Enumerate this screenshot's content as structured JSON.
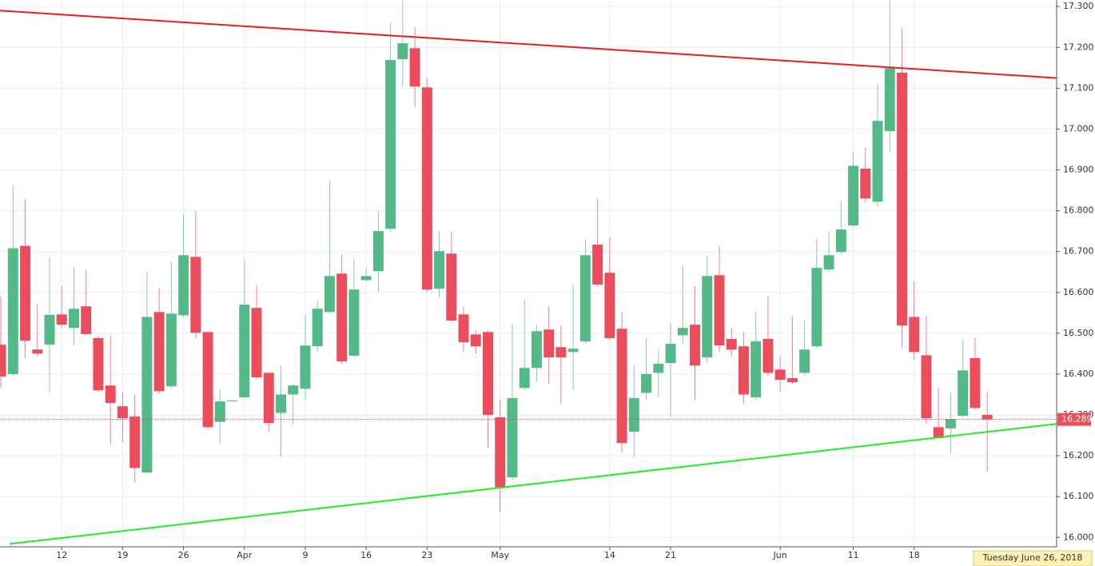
{
  "chart_data": {
    "type": "candlestick",
    "categories": [
      null,
      null,
      null,
      null,
      null,
      "12",
      null,
      null,
      null,
      null,
      "19",
      null,
      null,
      null,
      null,
      "26",
      null,
      null,
      null,
      null,
      "Apr",
      null,
      null,
      null,
      null,
      "9",
      null,
      null,
      null,
      null,
      "16",
      null,
      null,
      null,
      null,
      "23",
      null,
      null,
      null,
      null,
      null,
      "May",
      null,
      null,
      null,
      null,
      null,
      null,
      null,
      null,
      "14",
      null,
      null,
      null,
      null,
      "21",
      null,
      null,
      null,
      null,
      null,
      null,
      null,
      null,
      "Jun",
      null,
      null,
      null,
      null,
      null,
      "11",
      null,
      null,
      null,
      null,
      "18",
      null,
      null,
      null,
      null,
      null,
      null
    ],
    "open": [
      16.472,
      16.4,
      16.714,
      16.46,
      16.472,
      16.546,
      16.513,
      16.566,
      16.488,
      16.372,
      16.321,
      16.296,
      16.159,
      16.552,
      16.37,
      16.544,
      16.687,
      16.503,
      16.283,
      16.335,
      16.343,
      16.562,
      16.403,
      16.305,
      16.35,
      16.364,
      16.468,
      16.552,
      16.646,
      16.445,
      16.63,
      16.652,
      16.756,
      17.171,
      17.198,
      17.102,
      16.609,
      16.695,
      16.546,
      16.497,
      16.503,
      16.294,
      16.147,
      16.366,
      16.415,
      16.509,
      16.466,
      16.454,
      16.48,
      16.717,
      16.648,
      16.511,
      16.259,
      16.354,
      16.403,
      16.427,
      16.495,
      16.521,
      16.441,
      16.642,
      16.486,
      16.468,
      16.343,
      16.486,
      16.411,
      16.39,
      16.403,
      16.468,
      16.656,
      16.699,
      16.764,
      16.903,
      16.822,
      16.995,
      17.138,
      16.54,
      16.446,
      16.27,
      16.267,
      16.298,
      16.439,
      16.3
    ],
    "high": [
      16.59,
      16.863,
      16.828,
      16.572,
      16.687,
      16.615,
      16.662,
      16.654,
      16.492,
      16.494,
      16.356,
      16.349,
      16.652,
      16.611,
      16.675,
      16.791,
      16.8,
      16.501,
      16.364,
      16.337,
      16.677,
      16.619,
      16.405,
      16.421,
      16.376,
      16.546,
      16.581,
      16.873,
      16.693,
      16.683,
      16.66,
      16.799,
      17.261,
      17.316,
      17.249,
      17.124,
      16.75,
      16.748,
      16.566,
      16.507,
      16.507,
      16.337,
      16.523,
      16.583,
      16.521,
      16.566,
      16.519,
      16.619,
      16.728,
      16.828,
      16.734,
      16.552,
      16.421,
      16.488,
      16.458,
      16.525,
      16.666,
      16.615,
      16.689,
      16.713,
      16.513,
      16.503,
      16.552,
      16.591,
      16.444,
      16.542,
      16.533,
      16.732,
      16.748,
      16.826,
      16.944,
      16.954,
      17.11,
      17.316,
      17.247,
      16.627,
      16.542,
      16.366,
      16.356,
      16.484,
      16.49,
      16.356
    ],
    "low": [
      16.366,
      16.396,
      16.439,
      16.444,
      16.356,
      16.513,
      16.47,
      16.497,
      16.356,
      16.227,
      16.233,
      16.135,
      16.157,
      16.352,
      16.364,
      16.54,
      16.488,
      16.266,
      16.231,
      16.333,
      16.341,
      16.388,
      16.259,
      16.198,
      16.276,
      16.337,
      16.454,
      16.548,
      16.425,
      16.441,
      16.627,
      16.601,
      16.748,
      17.104,
      17.053,
      16.601,
      16.587,
      16.527,
      16.454,
      16.45,
      16.219,
      16.063,
      16.141,
      16.36,
      16.382,
      16.376,
      16.327,
      16.36,
      16.474,
      16.615,
      16.484,
      16.208,
      16.196,
      16.337,
      16.343,
      16.296,
      16.474,
      16.337,
      16.429,
      16.454,
      16.444,
      16.327,
      16.337,
      16.396,
      16.356,
      16.376,
      16.396,
      16.464,
      16.65,
      16.693,
      16.76,
      16.82,
      16.811,
      16.944,
      16.464,
      16.435,
      16.278,
      16.243,
      16.204,
      16.294,
      16.313,
      16.161
    ],
    "close": [
      16.394,
      16.708,
      16.482,
      16.45,
      16.545,
      16.521,
      16.56,
      16.498,
      16.36,
      16.329,
      16.292,
      16.17,
      16.54,
      16.358,
      16.548,
      16.691,
      16.501,
      16.27,
      16.333,
      16.335,
      16.57,
      16.392,
      16.28,
      16.35,
      16.372,
      16.47,
      16.56,
      16.64,
      16.431,
      16.607,
      16.64,
      16.75,
      17.169,
      17.21,
      17.104,
      16.607,
      16.701,
      16.531,
      16.478,
      16.468,
      16.3,
      16.123,
      16.341,
      16.415,
      16.505,
      16.441,
      16.441,
      16.462,
      16.691,
      16.619,
      16.488,
      16.231,
      16.341,
      16.4,
      16.425,
      16.474,
      16.513,
      16.421,
      16.64,
      16.47,
      16.46,
      16.35,
      16.48,
      16.403,
      16.386,
      16.38,
      16.46,
      16.66,
      16.691,
      16.754,
      16.91,
      16.83,
      17.02,
      17.149,
      16.519,
      16.454,
      16.292,
      16.243,
      16.29,
      16.409,
      16.317,
      16.289
    ],
    "up_color": "#53b987",
    "down_color": "#eb4d5c",
    "xlim": [
      -0.07,
      86.7
    ],
    "ylim": [
      15.977,
      17.316
    ],
    "yticks": [
      {
        "value": 16.0,
        "label": "16.000"
      },
      {
        "value": 16.1,
        "label": "16.100"
      },
      {
        "value": 16.2,
        "label": "16.200"
      },
      {
        "value": 16.3,
        "label": "16.300"
      },
      {
        "value": 16.4,
        "label": "16.400"
      },
      {
        "value": 16.5,
        "label": "16.500"
      },
      {
        "value": 16.6,
        "label": "16.600"
      },
      {
        "value": 16.7,
        "label": "16.700"
      },
      {
        "value": 16.8,
        "label": "16.800"
      },
      {
        "value": 16.9,
        "label": "16.900"
      },
      {
        "value": 17.0,
        "label": "17.000"
      },
      {
        "value": 17.1,
        "label": "17.100"
      },
      {
        "value": 17.2,
        "label": "17.200"
      },
      {
        "value": 17.3,
        "label": "17.300"
      }
    ],
    "grid": true,
    "trendlines": [
      {
        "color": "#ee1c1c",
        "x": [
          -0.07,
          86.7
        ],
        "values": [
          17.29,
          17.125
        ]
      },
      {
        "color": "#22ee22",
        "x": [
          0.72,
          86.7
        ],
        "values": [
          15.984,
          16.278
        ]
      }
    ],
    "last_price": 16.289,
    "last_price_color": "#e8505b",
    "crosshair_date": "Tuesday June 26, 2018"
  }
}
